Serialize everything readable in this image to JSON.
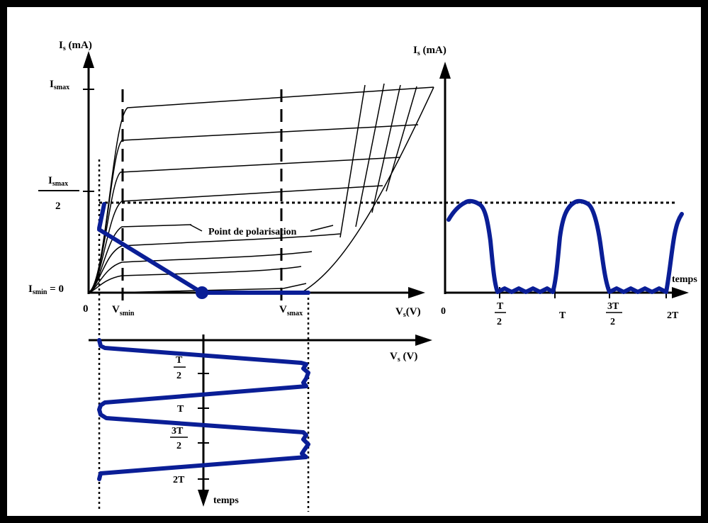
{
  "colors": {
    "frame": "#000000",
    "curve": "#000000",
    "signal": "#0a1e96",
    "background": "#ffffff"
  },
  "left_graph": {
    "y_axis_label": "I",
    "y_axis_label_sub": "s",
    "y_axis_label_unit": " (mA)",
    "y_max_label": "I",
    "y_max_label_sub": "smax",
    "y_half_label_top": "I",
    "y_half_label_sub": "smax",
    "y_half_label_den": "2",
    "y_min_label": "I",
    "y_min_label_sub": "smin",
    "y_min_label_rest": " = 0",
    "origin_label": "0",
    "vsmin_label": "V",
    "vsmin_sub": "smin",
    "vsmax_label": "V",
    "vsmax_sub": "smax",
    "x_axis_label": "V",
    "x_axis_label_sub": "s",
    "x_axis_label_unit": "(V)",
    "annotation": "Point de polarisation"
  },
  "bottom_graph": {
    "x_axis_label": "V",
    "x_axis_label_sub": "s",
    "x_axis_label_unit": " (V)",
    "t_half_num": "T",
    "t_half_den": "2",
    "t_label": "T",
    "t_3half_num": "3T",
    "t_3half_den": "2",
    "t_2_label": "2T",
    "axis_label": "temps"
  },
  "right_graph": {
    "y_axis_label": "I",
    "y_axis_label_sub": "s",
    "y_axis_label_unit": " (mA)",
    "origin_label": "0",
    "t_half_num": "T",
    "t_half_den": "2",
    "t_label": "T",
    "t_3half_num": "3T",
    "t_3half_den": "2",
    "t_2_label": "2T",
    "axis_label": "temps"
  }
}
